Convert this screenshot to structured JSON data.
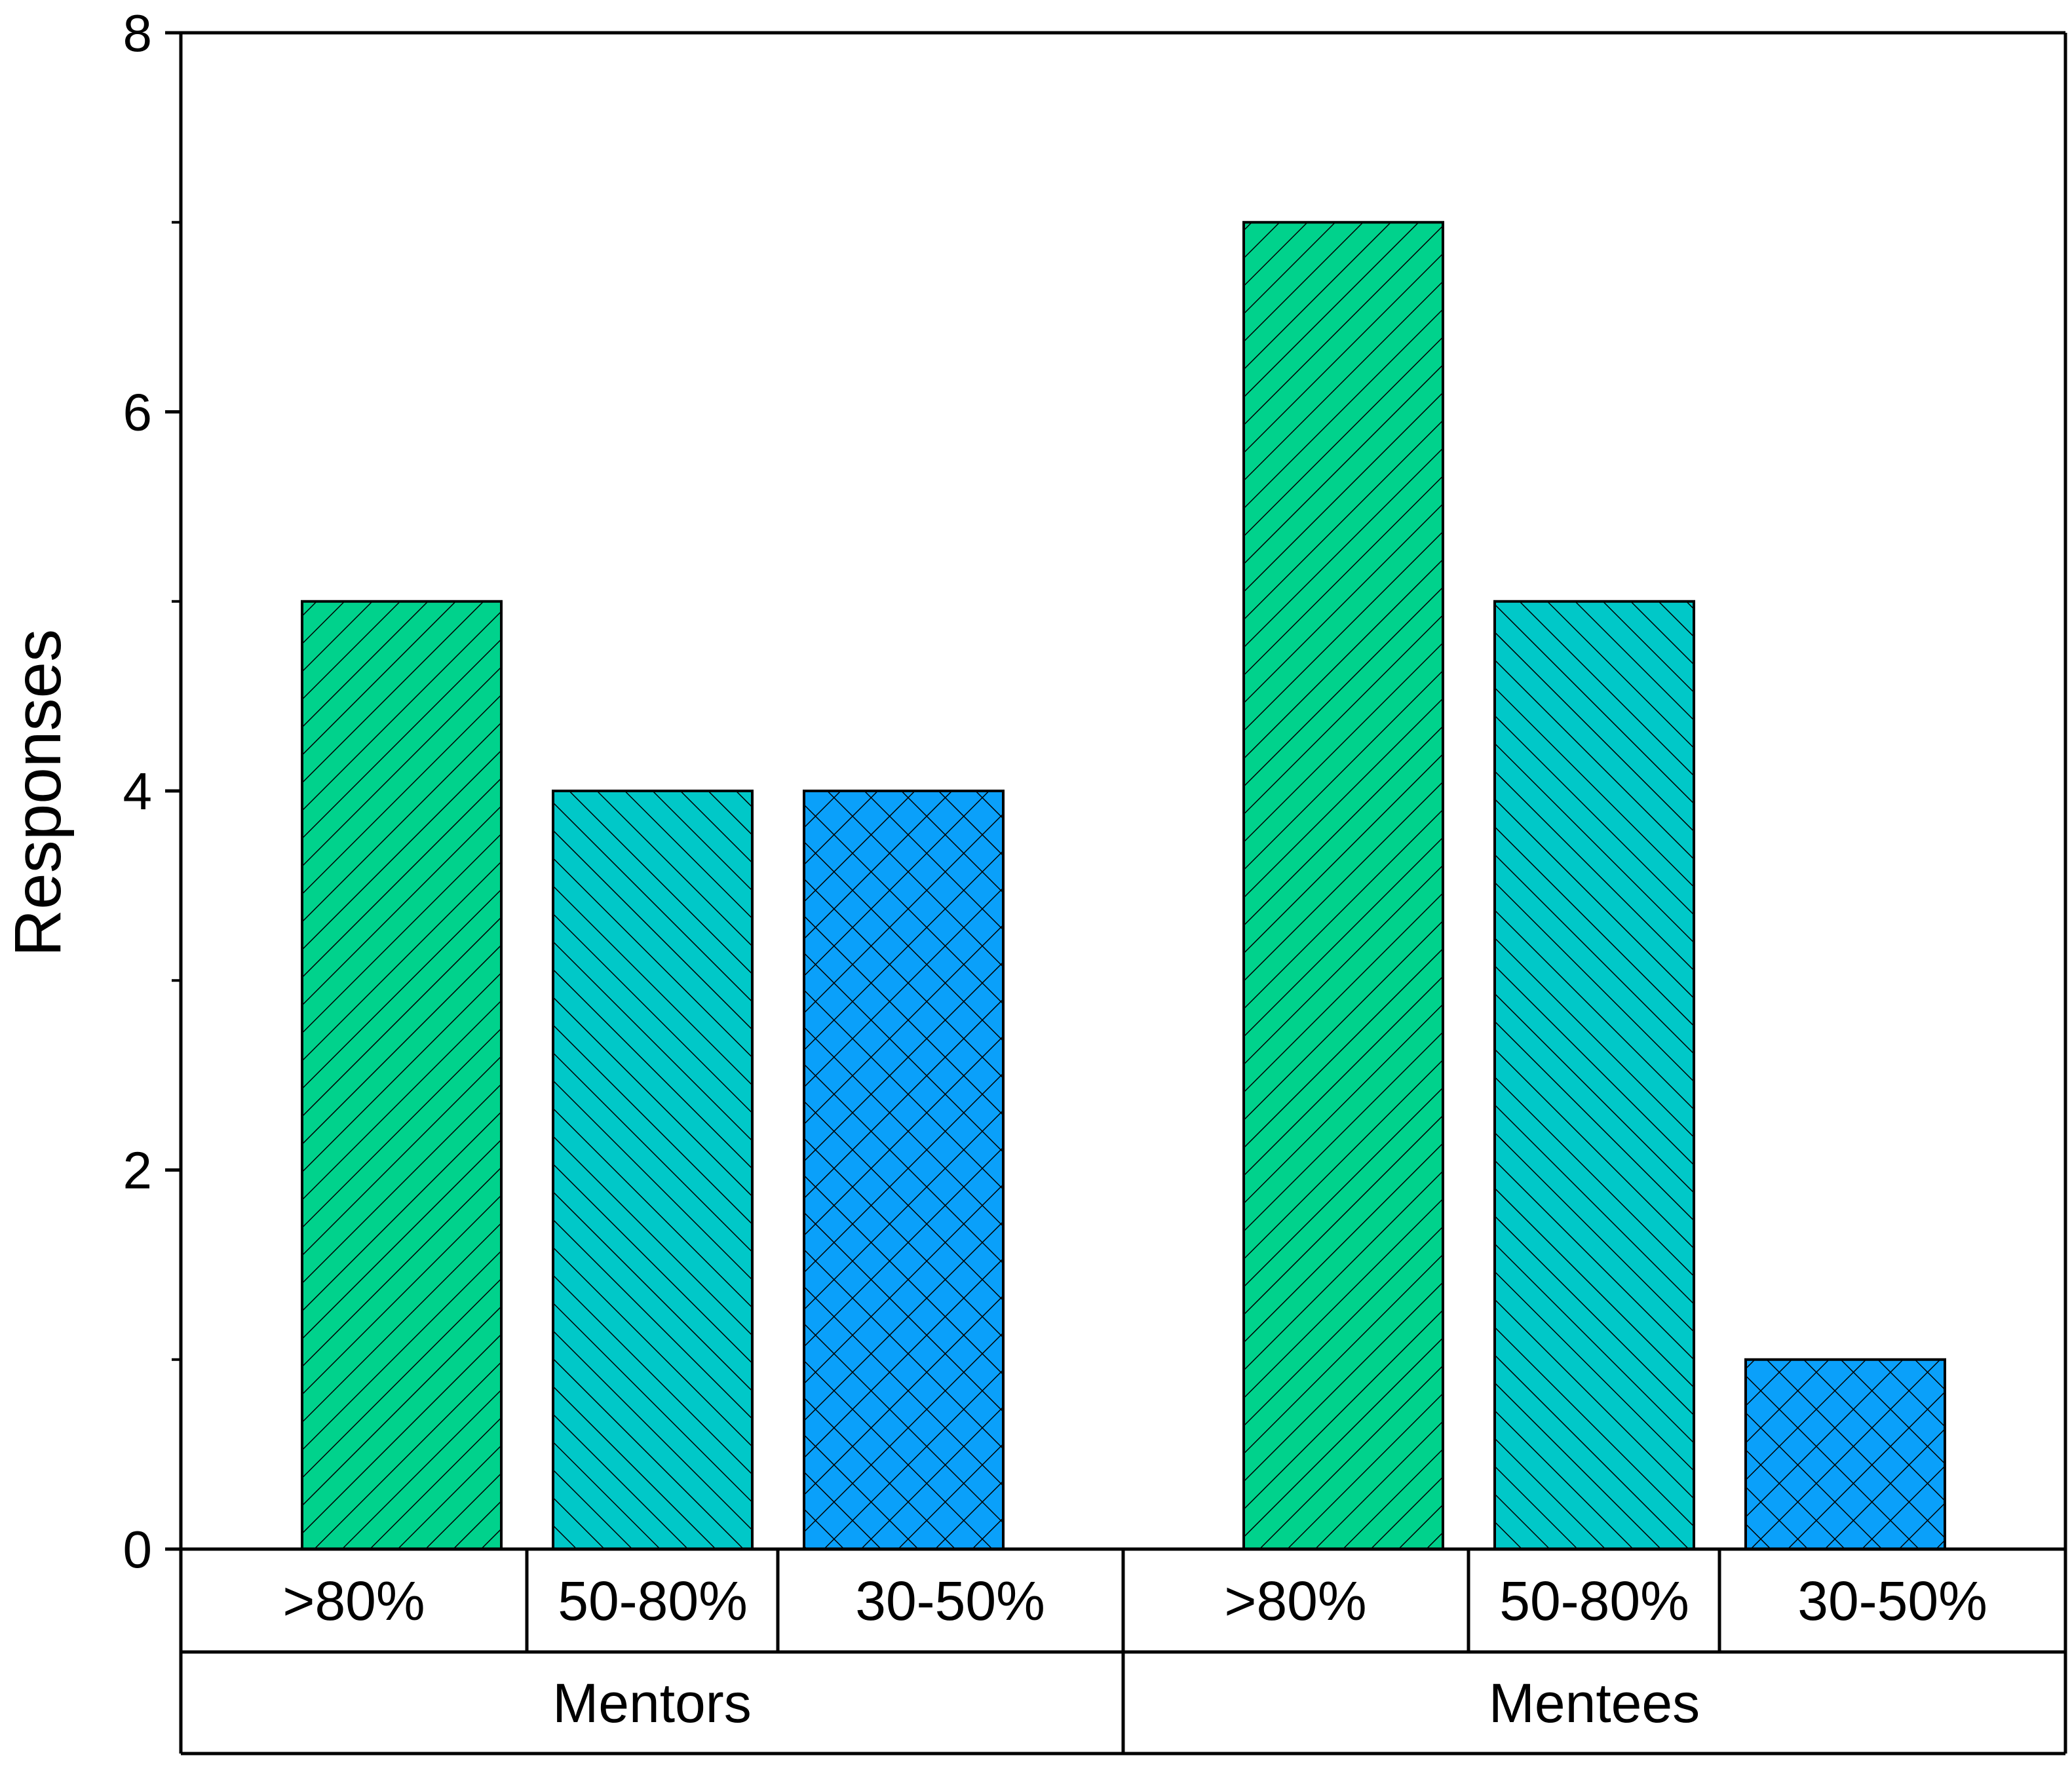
{
  "chart_data": {
    "type": "bar",
    "title": "",
    "xlabel": "",
    "ylabel": "Responses",
    "ylim": [
      0,
      8
    ],
    "yticks": [
      "0",
      "2",
      "4",
      "6",
      "8"
    ],
    "grid": false,
    "groups": [
      {
        "name": "Mentors",
        "bars": [
          {
            "category": ">80%",
            "value": 5,
            "pattern": "diag-up"
          },
          {
            "category": "50-80%",
            "value": 4,
            "pattern": "diag-down"
          },
          {
            "category": "30-50%",
            "value": 4,
            "pattern": "crosshatch"
          }
        ]
      },
      {
        "name": "Mentees",
        "bars": [
          {
            "category": ">80%",
            "value": 7,
            "pattern": "diag-up"
          },
          {
            "category": "50-80%",
            "value": 5,
            "pattern": "diag-down"
          },
          {
            "category": "30-50%",
            "value": 1,
            "pattern": "crosshatch"
          }
        ]
      }
    ],
    "colors": {
      ">80%": "#00d28c",
      "50-80%": "#00c8c8",
      "30-50%": "#0aa0fa"
    }
  }
}
